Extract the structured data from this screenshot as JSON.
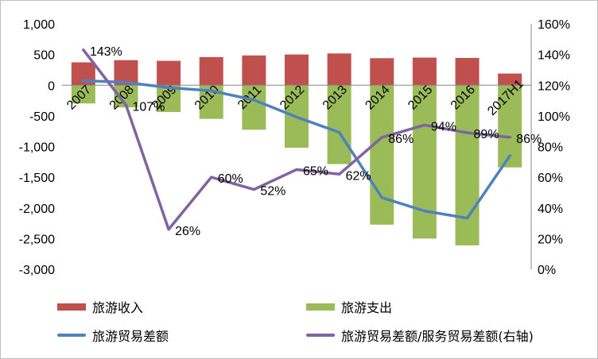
{
  "chart_data": {
    "type": "bar",
    "categories": [
      "2007",
      "2008",
      "2009",
      "2010",
      "2011",
      "2012",
      "2013",
      "2014",
      "2015",
      "2016",
      "2017H1"
    ],
    "series": [
      {
        "name": "旅游收入",
        "type": "bar",
        "axis": "left",
        "color": "#C0504D",
        "values": [
          372,
          408,
          397,
          458,
          485,
          500,
          517,
          440,
          450,
          444,
          190
        ]
      },
      {
        "name": "旅游支出",
        "type": "bar",
        "axis": "left",
        "color": "#9BBB59",
        "values": [
          -298,
          -362,
          -437,
          -549,
          -726,
          -1020,
          -1286,
          -2273,
          -2500,
          -2611,
          -1340
        ]
      },
      {
        "name": "旅游贸易差额",
        "type": "line",
        "axis": "left",
        "color": "#4F81BD",
        "values": [
          74,
          46,
          -40,
          -91,
          -241,
          -520,
          -769,
          -1833,
          -2050,
          -2167,
          -1150
        ]
      },
      {
        "name": "旅游贸易差额/服务贸易差额(右轴)",
        "type": "line",
        "axis": "right",
        "color": "#8064A2",
        "values": [
          143,
          107,
          26,
          60,
          52,
          65,
          62,
          86,
          94,
          89,
          86
        ],
        "labels": [
          "143%",
          "107%",
          "26%",
          "60%",
          "52%",
          "65%",
          "62%",
          "86%",
          "94%",
          "89%",
          "86%"
        ]
      }
    ],
    "left_axis": {
      "min": -3000,
      "max": 1000,
      "step": 500,
      "tick_labels": [
        "1,000",
        "500",
        "0",
        "-500",
        "-1,000",
        "-1,500",
        "-2,000",
        "-2,500",
        "-3,000"
      ]
    },
    "right_axis": {
      "min": 0,
      "max": 160,
      "step": 20,
      "tick_labels": [
        "160%",
        "140%",
        "120%",
        "100%",
        "80%",
        "60%",
        "40%",
        "20%",
        "0%"
      ]
    },
    "grid": false,
    "legend_position": "bottom"
  }
}
